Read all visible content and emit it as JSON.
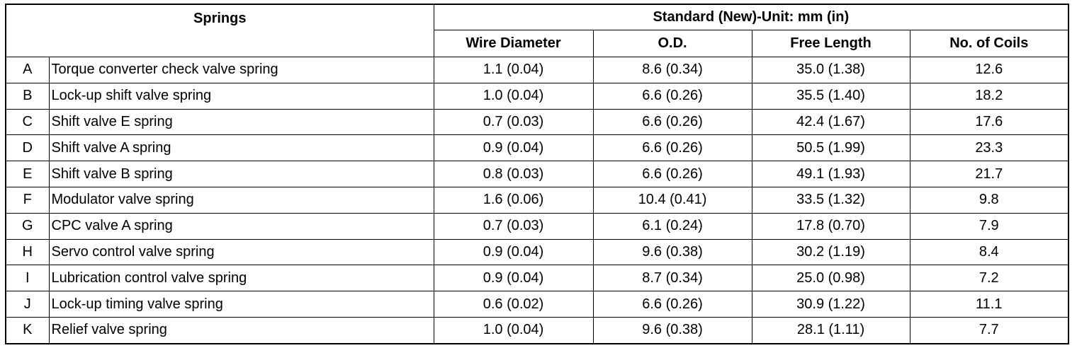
{
  "header": {
    "springs": "Springs",
    "standard": "Standard (New)-Unit: mm (in)",
    "columns": [
      "Wire Diameter",
      "O.D.",
      "Free Length",
      "No. of Coils"
    ]
  },
  "table": {
    "rows": [
      [
        "A",
        "Torque converter check valve spring",
        "1.1 (0.04)",
        "8.6 (0.34)",
        "35.0 (1.38)",
        "12.6"
      ],
      [
        "B",
        "Lock-up shift valve spring",
        "1.0 (0.04)",
        "6.6 (0.26)",
        "35.5 (1.40)",
        "18.2"
      ],
      [
        "C",
        "Shift valve E spring",
        "0.7 (0.03)",
        "6.6 (0.26)",
        "42.4 (1.67)",
        "17.6"
      ],
      [
        "D",
        "Shift valve A spring",
        "0.9 (0.04)",
        "6.6 (0.26)",
        "50.5 (1.99)",
        "23.3"
      ],
      [
        "E",
        "Shift valve B spring",
        "0.8 (0.03)",
        "6.6 (0.26)",
        "49.1 (1.93)",
        "21.7"
      ],
      [
        "F",
        "Modulator valve spring",
        "1.6 (0.06)",
        "10.4 (0.41)",
        "33.5 (1.32)",
        "9.8"
      ],
      [
        "G",
        "CPC valve A spring",
        "0.7 (0.03)",
        "6.1 (0.24)",
        "17.8 (0.70)",
        "7.9"
      ],
      [
        "H",
        "Servo control valve spring",
        "0.9 (0.04)",
        "9.6 (0.38)",
        "30.2 (1.19)",
        "8.4"
      ],
      [
        "I",
        "Lubrication control valve spring",
        "0.9 (0.04)",
        "8.7 (0.34)",
        "25.0 (0.98)",
        "7.2"
      ],
      [
        "J",
        "Lock-up timing valve spring",
        "0.6 (0.02)",
        "6.6 (0.26)",
        "30.9 (1.22)",
        "11.1"
      ],
      [
        "K",
        "Relief valve spring",
        "1.0 (0.04)",
        "9.6 (0.38)",
        "28.1 (1.11)",
        "7.7"
      ]
    ]
  }
}
